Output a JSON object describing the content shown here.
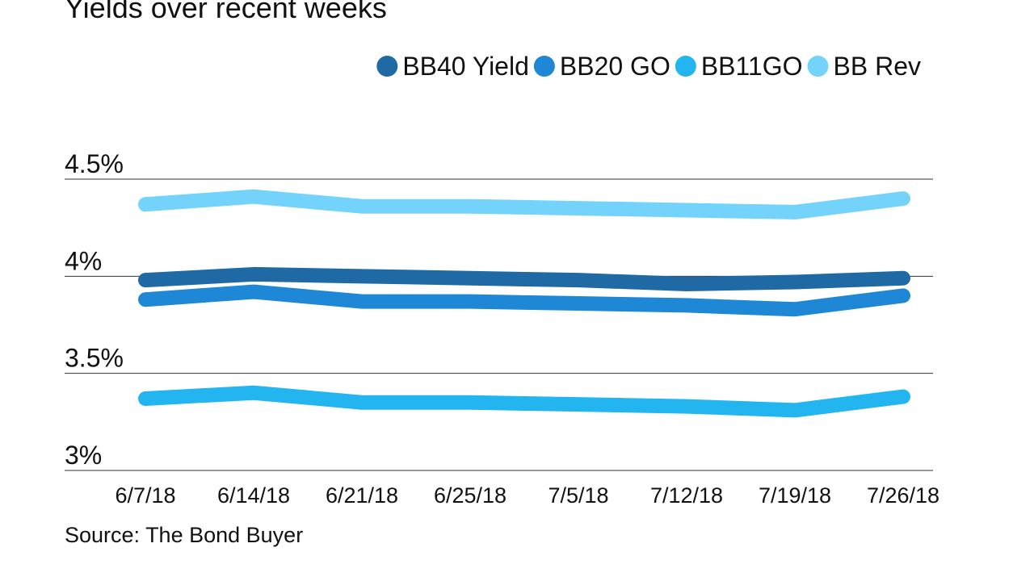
{
  "chart_data": {
    "type": "line",
    "title": "Yields over recent weeks",
    "source": "Source: The Bond Buyer",
    "categories": [
      "6/7/18",
      "6/14/18",
      "6/21/18",
      "6/25/18",
      "7/5/18",
      "7/12/18",
      "7/19/18",
      "7/26/18"
    ],
    "series": [
      {
        "name": "BB40 Yield",
        "color": "#1f6aa5",
        "values": [
          3.98,
          4.01,
          4.0,
          3.99,
          3.98,
          3.96,
          3.97,
          3.99
        ]
      },
      {
        "name": "BB20 GO",
        "color": "#1e88d6",
        "values": [
          3.88,
          3.92,
          3.87,
          3.87,
          3.86,
          3.85,
          3.83,
          3.9
        ]
      },
      {
        "name": "BB11GO",
        "color": "#22b5ef",
        "values": [
          3.37,
          3.4,
          3.35,
          3.35,
          3.34,
          3.33,
          3.31,
          3.38
        ]
      },
      {
        "name": "BB Rev",
        "color": "#73d3fb",
        "values": [
          4.37,
          4.41,
          4.36,
          4.36,
          4.35,
          4.34,
          4.33,
          4.4
        ]
      }
    ],
    "ylim": [
      3,
      4.5
    ],
    "yticks": [
      {
        "value": 3,
        "label": "3%"
      },
      {
        "value": 3.5,
        "label": "3.5%"
      },
      {
        "value": 4,
        "label": "4%"
      },
      {
        "value": 4.5,
        "label": "4.5%"
      }
    ],
    "grid": true,
    "legend": "top-right"
  }
}
